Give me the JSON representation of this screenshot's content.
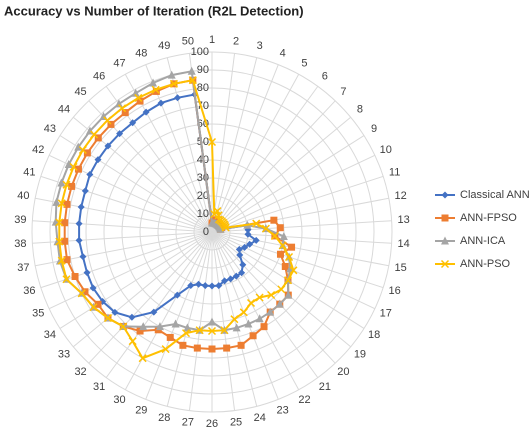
{
  "chart_data": {
    "type": "radar",
    "title": "Accuracy vs Number of Iteration (R2L Detection)",
    "categories": [
      "1",
      "2",
      "3",
      "4",
      "5",
      "6",
      "7",
      "8",
      "9",
      "10",
      "11",
      "12",
      "13",
      "14",
      "15",
      "16",
      "17",
      "18",
      "19",
      "20",
      "21",
      "22",
      "23",
      "24",
      "25",
      "26",
      "27",
      "28",
      "29",
      "30",
      "31",
      "32",
      "33",
      "34",
      "35",
      "36",
      "37",
      "38",
      "39",
      "40",
      "41",
      "42",
      "43",
      "44",
      "45",
      "46",
      "47",
      "48",
      "49",
      "50"
    ],
    "ylim": [
      0,
      100
    ],
    "yticks": [
      0,
      10,
      20,
      30,
      40,
      50,
      60,
      70,
      80,
      90,
      100
    ],
    "grid": true,
    "legend": "right",
    "series": [
      {
        "name": "Classical ANN",
        "color": "#4472c4",
        "marker": "diamond",
        "values": [
          5,
          5,
          5,
          5,
          5,
          5,
          5,
          5,
          5,
          5,
          5,
          20,
          20,
          20,
          25,
          22,
          20,
          18,
          20,
          25,
          28,
          28,
          28,
          28,
          30,
          30,
          30,
          30,
          32,
          40,
          55,
          65,
          70,
          72,
          73,
          73,
          73,
          74,
          74,
          74,
          74,
          75,
          75,
          75,
          75,
          75,
          76,
          77,
          77,
          77
        ]
      },
      {
        "name": "ANN-FPSO",
        "color": "#ed7d31",
        "marker": "square",
        "values": [
          5,
          6,
          7,
          6,
          6,
          6,
          6,
          6,
          6,
          6,
          5,
          35,
          38,
          35,
          45,
          40,
          45,
          50,
          55,
          55,
          55,
          60,
          62,
          65,
          65,
          65,
          65,
          65,
          63,
          62,
          68,
          72,
          75,
          75,
          78,
          80,
          82,
          82,
          82,
          82,
          82,
          82,
          82,
          82,
          82,
          82,
          83,
          84,
          85,
          85
        ]
      },
      {
        "name": "ANN-ICA",
        "color": "#a5a5a5",
        "marker": "triangle",
        "values": [
          5,
          5,
          5,
          5,
          5,
          5,
          5,
          5,
          5,
          5,
          5,
          20,
          30,
          40,
          40,
          45,
          48,
          50,
          55,
          55,
          55,
          55,
          55,
          55,
          55,
          50,
          55,
          55,
          55,
          60,
          65,
          72,
          75,
          78,
          80,
          85,
          86,
          86,
          87,
          88,
          88,
          88,
          88,
          88,
          88,
          88,
          88,
          89,
          90,
          90
        ]
      },
      {
        "name": "ANN-PSO",
        "color": "#ffc000",
        "marker": "x",
        "values": [
          50,
          10,
          12,
          10,
          8,
          8,
          8,
          8,
          8,
          8,
          8,
          25,
          30,
          35,
          40,
          45,
          50,
          50,
          50,
          48,
          45,
          45,
          48,
          50,
          55,
          55,
          55,
          58,
          70,
          80,
          75,
          72,
          75,
          78,
          80,
          85,
          85,
          85,
          85,
          85,
          85,
          85,
          85,
          85,
          85,
          85,
          85,
          85,
          85,
          85
        ]
      }
    ]
  }
}
